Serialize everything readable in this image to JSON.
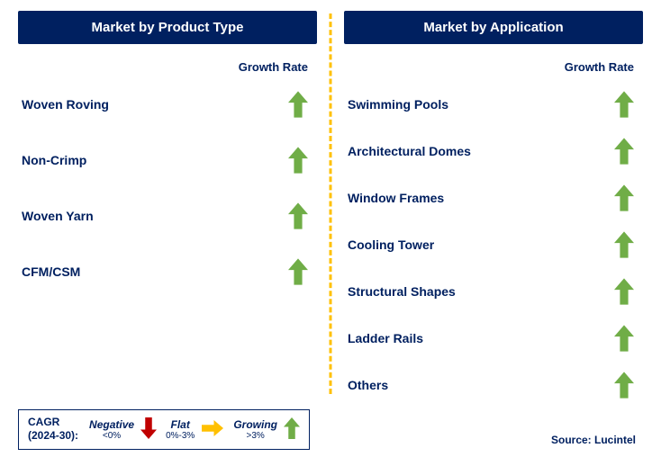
{
  "left_panel": {
    "title": "Market by Product Type",
    "growth_header": "Growth Rate",
    "items": [
      {
        "label": "Woven Roving",
        "direction": "up"
      },
      {
        "label": "Non-Crimp",
        "direction": "up"
      },
      {
        "label": "Woven Yarn",
        "direction": "up"
      },
      {
        "label": "CFM/CSM",
        "direction": "up"
      }
    ]
  },
  "right_panel": {
    "title": "Market by Application",
    "growth_header": "Growth Rate",
    "items": [
      {
        "label": "Swimming Pools",
        "direction": "up"
      },
      {
        "label": "Architectural Domes",
        "direction": "up"
      },
      {
        "label": "Window Frames",
        "direction": "up"
      },
      {
        "label": "Cooling Tower",
        "direction": "up"
      },
      {
        "label": "Structural Shapes",
        "direction": "up"
      },
      {
        "label": "Ladder Rails",
        "direction": "up"
      },
      {
        "label": "Others",
        "direction": "up"
      }
    ]
  },
  "legend": {
    "title_line1": "CAGR",
    "title_line2": "(2024-30):",
    "items": [
      {
        "name": "Negative",
        "range": "<0%",
        "color": "#c00000",
        "dir": "down"
      },
      {
        "name": "Flat",
        "range": "0%-3%",
        "color": "#ffc000",
        "dir": "right"
      },
      {
        "name": "Growing",
        "range": ">3%",
        "color": "#70ad47",
        "dir": "up"
      }
    ]
  },
  "source": "Source: Lucintel",
  "colors": {
    "header_bg": "#002060",
    "text": "#002060",
    "arrow_up": "#70ad47",
    "divider": "#ffc000"
  }
}
